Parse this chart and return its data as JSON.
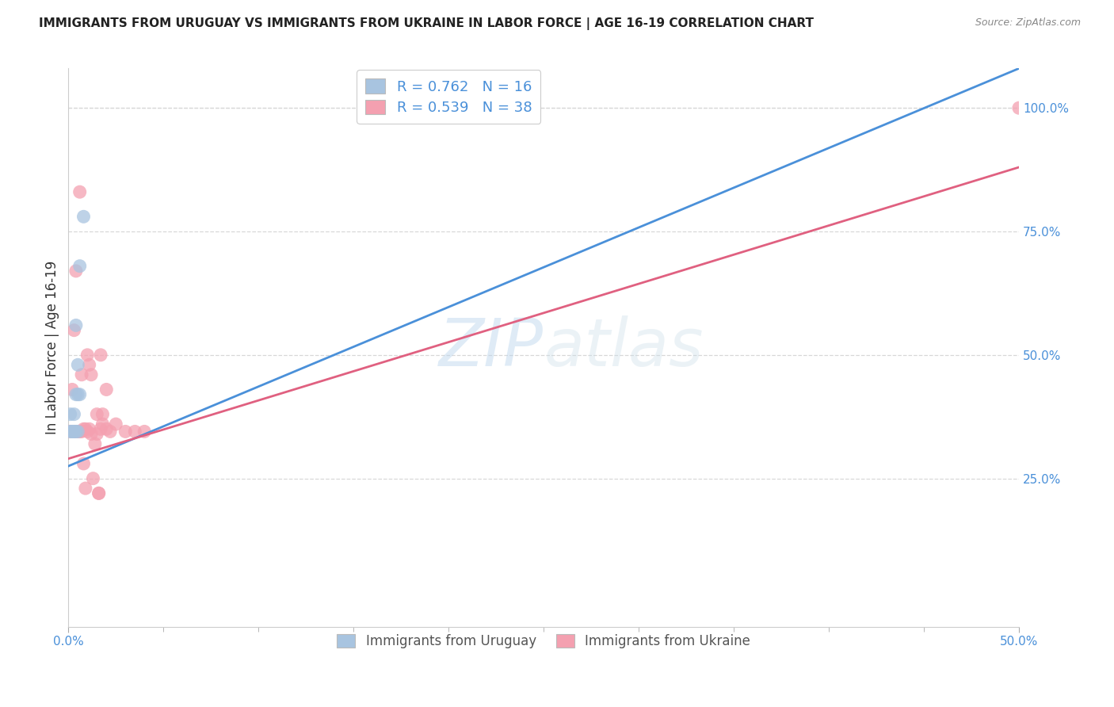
{
  "title": "IMMIGRANTS FROM URUGUAY VS IMMIGRANTS FROM UKRAINE IN LABOR FORCE | AGE 16-19 CORRELATION CHART",
  "source": "Source: ZipAtlas.com",
  "ylabel": "In Labor Force | Age 16-19",
  "ylabel_right_labels": [
    "100.0%",
    "75.0%",
    "50.0%",
    "25.0%"
  ],
  "ylabel_right_values": [
    1.0,
    0.75,
    0.5,
    0.25
  ],
  "watermark_zip": "ZIP",
  "watermark_atlas": "atlas",
  "xlim": [
    0.0,
    0.5
  ],
  "ylim": [
    -0.05,
    1.08
  ],
  "uruguay_R": 0.762,
  "uruguay_N": 16,
  "ukraine_R": 0.539,
  "ukraine_N": 38,
  "uruguay_color": "#a8c4e0",
  "ukraine_color": "#f4a0b0",
  "uruguay_line_color": "#4a90d9",
  "ukraine_line_color": "#e06080",
  "legend_text_color": "#4a90d9",
  "uruguay_scatter_x": [
    0.001,
    0.001,
    0.002,
    0.002,
    0.003,
    0.003,
    0.003,
    0.004,
    0.004,
    0.004,
    0.005,
    0.005,
    0.005,
    0.006,
    0.006,
    0.008
  ],
  "uruguay_scatter_y": [
    0.345,
    0.38,
    0.345,
    0.345,
    0.345,
    0.345,
    0.38,
    0.345,
    0.42,
    0.56,
    0.345,
    0.42,
    0.48,
    0.42,
    0.68,
    0.78
  ],
  "ukraine_scatter_x": [
    0.001,
    0.002,
    0.003,
    0.004,
    0.004,
    0.005,
    0.006,
    0.006,
    0.007,
    0.007,
    0.008,
    0.008,
    0.009,
    0.009,
    0.01,
    0.01,
    0.011,
    0.011,
    0.012,
    0.012,
    0.013,
    0.014,
    0.015,
    0.015,
    0.016,
    0.016,
    0.017,
    0.017,
    0.018,
    0.018,
    0.02,
    0.02,
    0.022,
    0.025,
    0.03,
    0.035,
    0.04,
    0.5
  ],
  "ukraine_scatter_y": [
    0.345,
    0.43,
    0.55,
    0.345,
    0.67,
    0.345,
    0.83,
    0.345,
    0.46,
    0.345,
    0.35,
    0.28,
    0.23,
    0.35,
    0.5,
    0.345,
    0.48,
    0.35,
    0.34,
    0.46,
    0.25,
    0.32,
    0.34,
    0.38,
    0.22,
    0.22,
    0.5,
    0.35,
    0.36,
    0.38,
    0.43,
    0.35,
    0.345,
    0.36,
    0.345,
    0.345,
    0.345,
    1.0
  ],
  "ury_line_x0": 0.0,
  "ury_line_y0": 0.275,
  "ury_line_x1": 0.5,
  "ury_line_y1": 1.08,
  "ukr_line_x0": 0.0,
  "ukr_line_y0": 0.29,
  "ukr_line_x1": 0.5,
  "ukr_line_y1": 0.88,
  "background_color": "#ffffff",
  "grid_color": "#d8d8d8",
  "title_color": "#222222",
  "axis_tick_color": "#4a90d9",
  "figsize": [
    14.06,
    8.92
  ],
  "dpi": 100
}
